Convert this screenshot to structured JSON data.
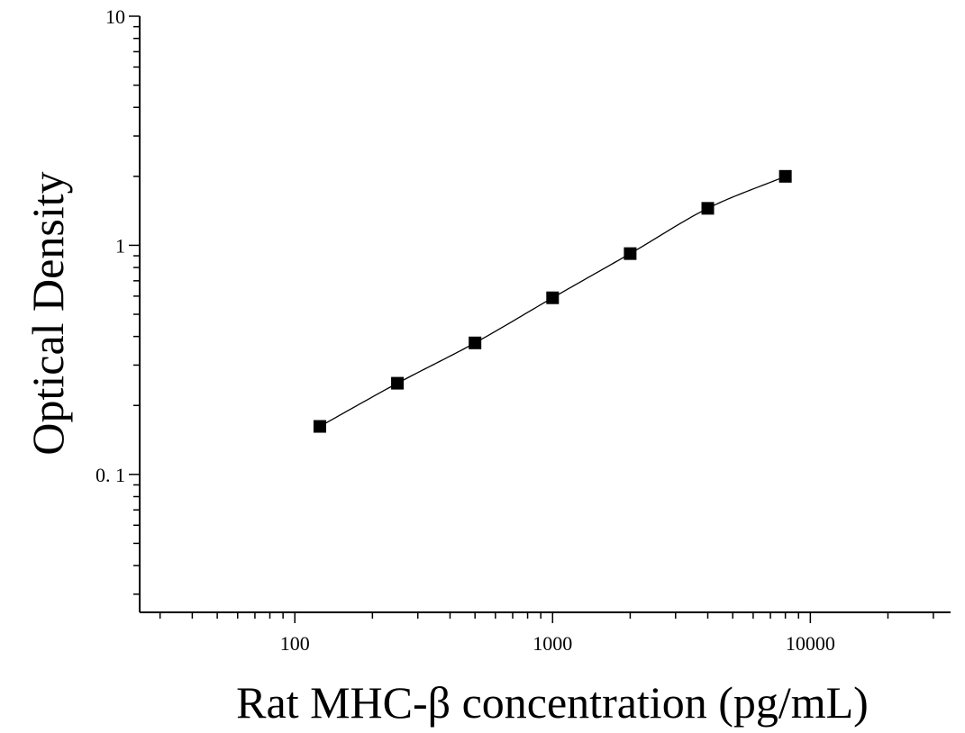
{
  "chart_data": {
    "type": "scatter",
    "title": "",
    "xlabel": "Rat MHC-β concentration (pg/mL)",
    "ylabel": "Optical Density",
    "x_scale": "log",
    "y_scale": "log",
    "xlim": [
      25,
      35000
    ],
    "ylim": [
      0.025,
      10
    ],
    "x_ticks": [
      {
        "value": 100,
        "label": "100"
      },
      {
        "value": 1000,
        "label": "1000"
      },
      {
        "value": 10000,
        "label": "10000"
      }
    ],
    "y_ticks": [
      {
        "value": 0.1,
        "label": "0. 1"
      },
      {
        "value": 1,
        "label": "1"
      },
      {
        "value": 10,
        "label": "10"
      }
    ],
    "grid": false,
    "legend": "none",
    "series": [
      {
        "marker": "square",
        "color": "#000000",
        "x": [
          125,
          250,
          500,
          1000,
          2000,
          4000,
          8000
        ],
        "y": [
          0.162,
          0.25,
          0.375,
          0.59,
          0.92,
          1.45,
          2.0
        ]
      }
    ],
    "fit_curve": {
      "color": "#000000",
      "kind": "smooth"
    }
  }
}
